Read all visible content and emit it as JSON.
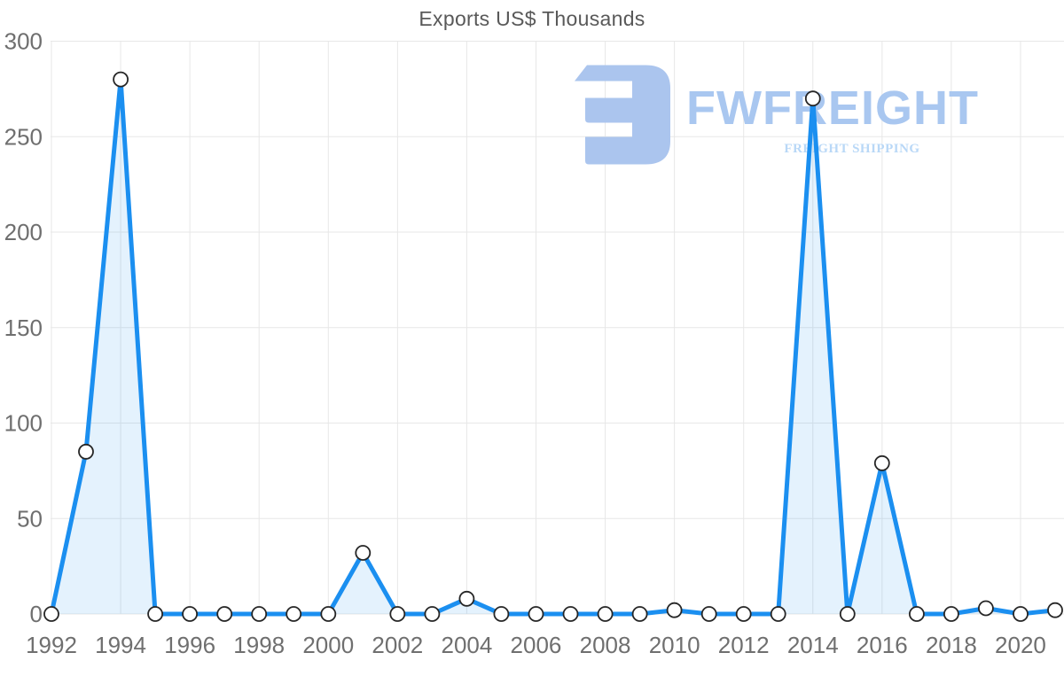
{
  "header": {
    "title": "Exports US$ Thousands"
  },
  "watermark": {
    "brand": "FWFREIGHT",
    "tagline": "FREIGHT SHIPPING",
    "icon": "fwfreight-logo-icon",
    "icon_color": "#abc5ee",
    "brand_color": "#a9c7f0",
    "tagline_color": "#b9d8f7"
  },
  "chart_data": {
    "type": "area",
    "title": "Exports US$ Thousands",
    "series_name": "Exports US$ Thousands",
    "x": [
      1992,
      1993,
      1994,
      1995,
      1996,
      1997,
      1998,
      1999,
      2000,
      2001,
      2002,
      2003,
      2004,
      2005,
      2006,
      2007,
      2008,
      2009,
      2010,
      2011,
      2012,
      2013,
      2014,
      2015,
      2016,
      2017,
      2018,
      2019,
      2020,
      2021
    ],
    "values": [
      0,
      85,
      280,
      0,
      0,
      0,
      0,
      0,
      0,
      32,
      0,
      0,
      8,
      0,
      0,
      0,
      0,
      0,
      2,
      0,
      0,
      0,
      270,
      0,
      79,
      0,
      0,
      3,
      0,
      2
    ],
    "xlabel": "",
    "ylabel": "",
    "ylim": [
      0,
      300
    ],
    "yticks": [
      0,
      50,
      100,
      150,
      200,
      250,
      300
    ],
    "xtick_labels": [
      "1992",
      "1994",
      "1996",
      "1998",
      "2000",
      "2002",
      "2004",
      "2006",
      "2008",
      "2010",
      "2012",
      "2014",
      "2016",
      "2018",
      "2020"
    ],
    "grid": true,
    "legend": "none",
    "colors": {
      "line": "#1b8ff0",
      "fill": "rgba(30,144,240,0.12)",
      "marker_fill": "#ffffff",
      "marker_stroke": "#262626",
      "gridline": "#e7e7e7",
      "tick_label": "#6f6f6f",
      "title": "#595959"
    }
  }
}
